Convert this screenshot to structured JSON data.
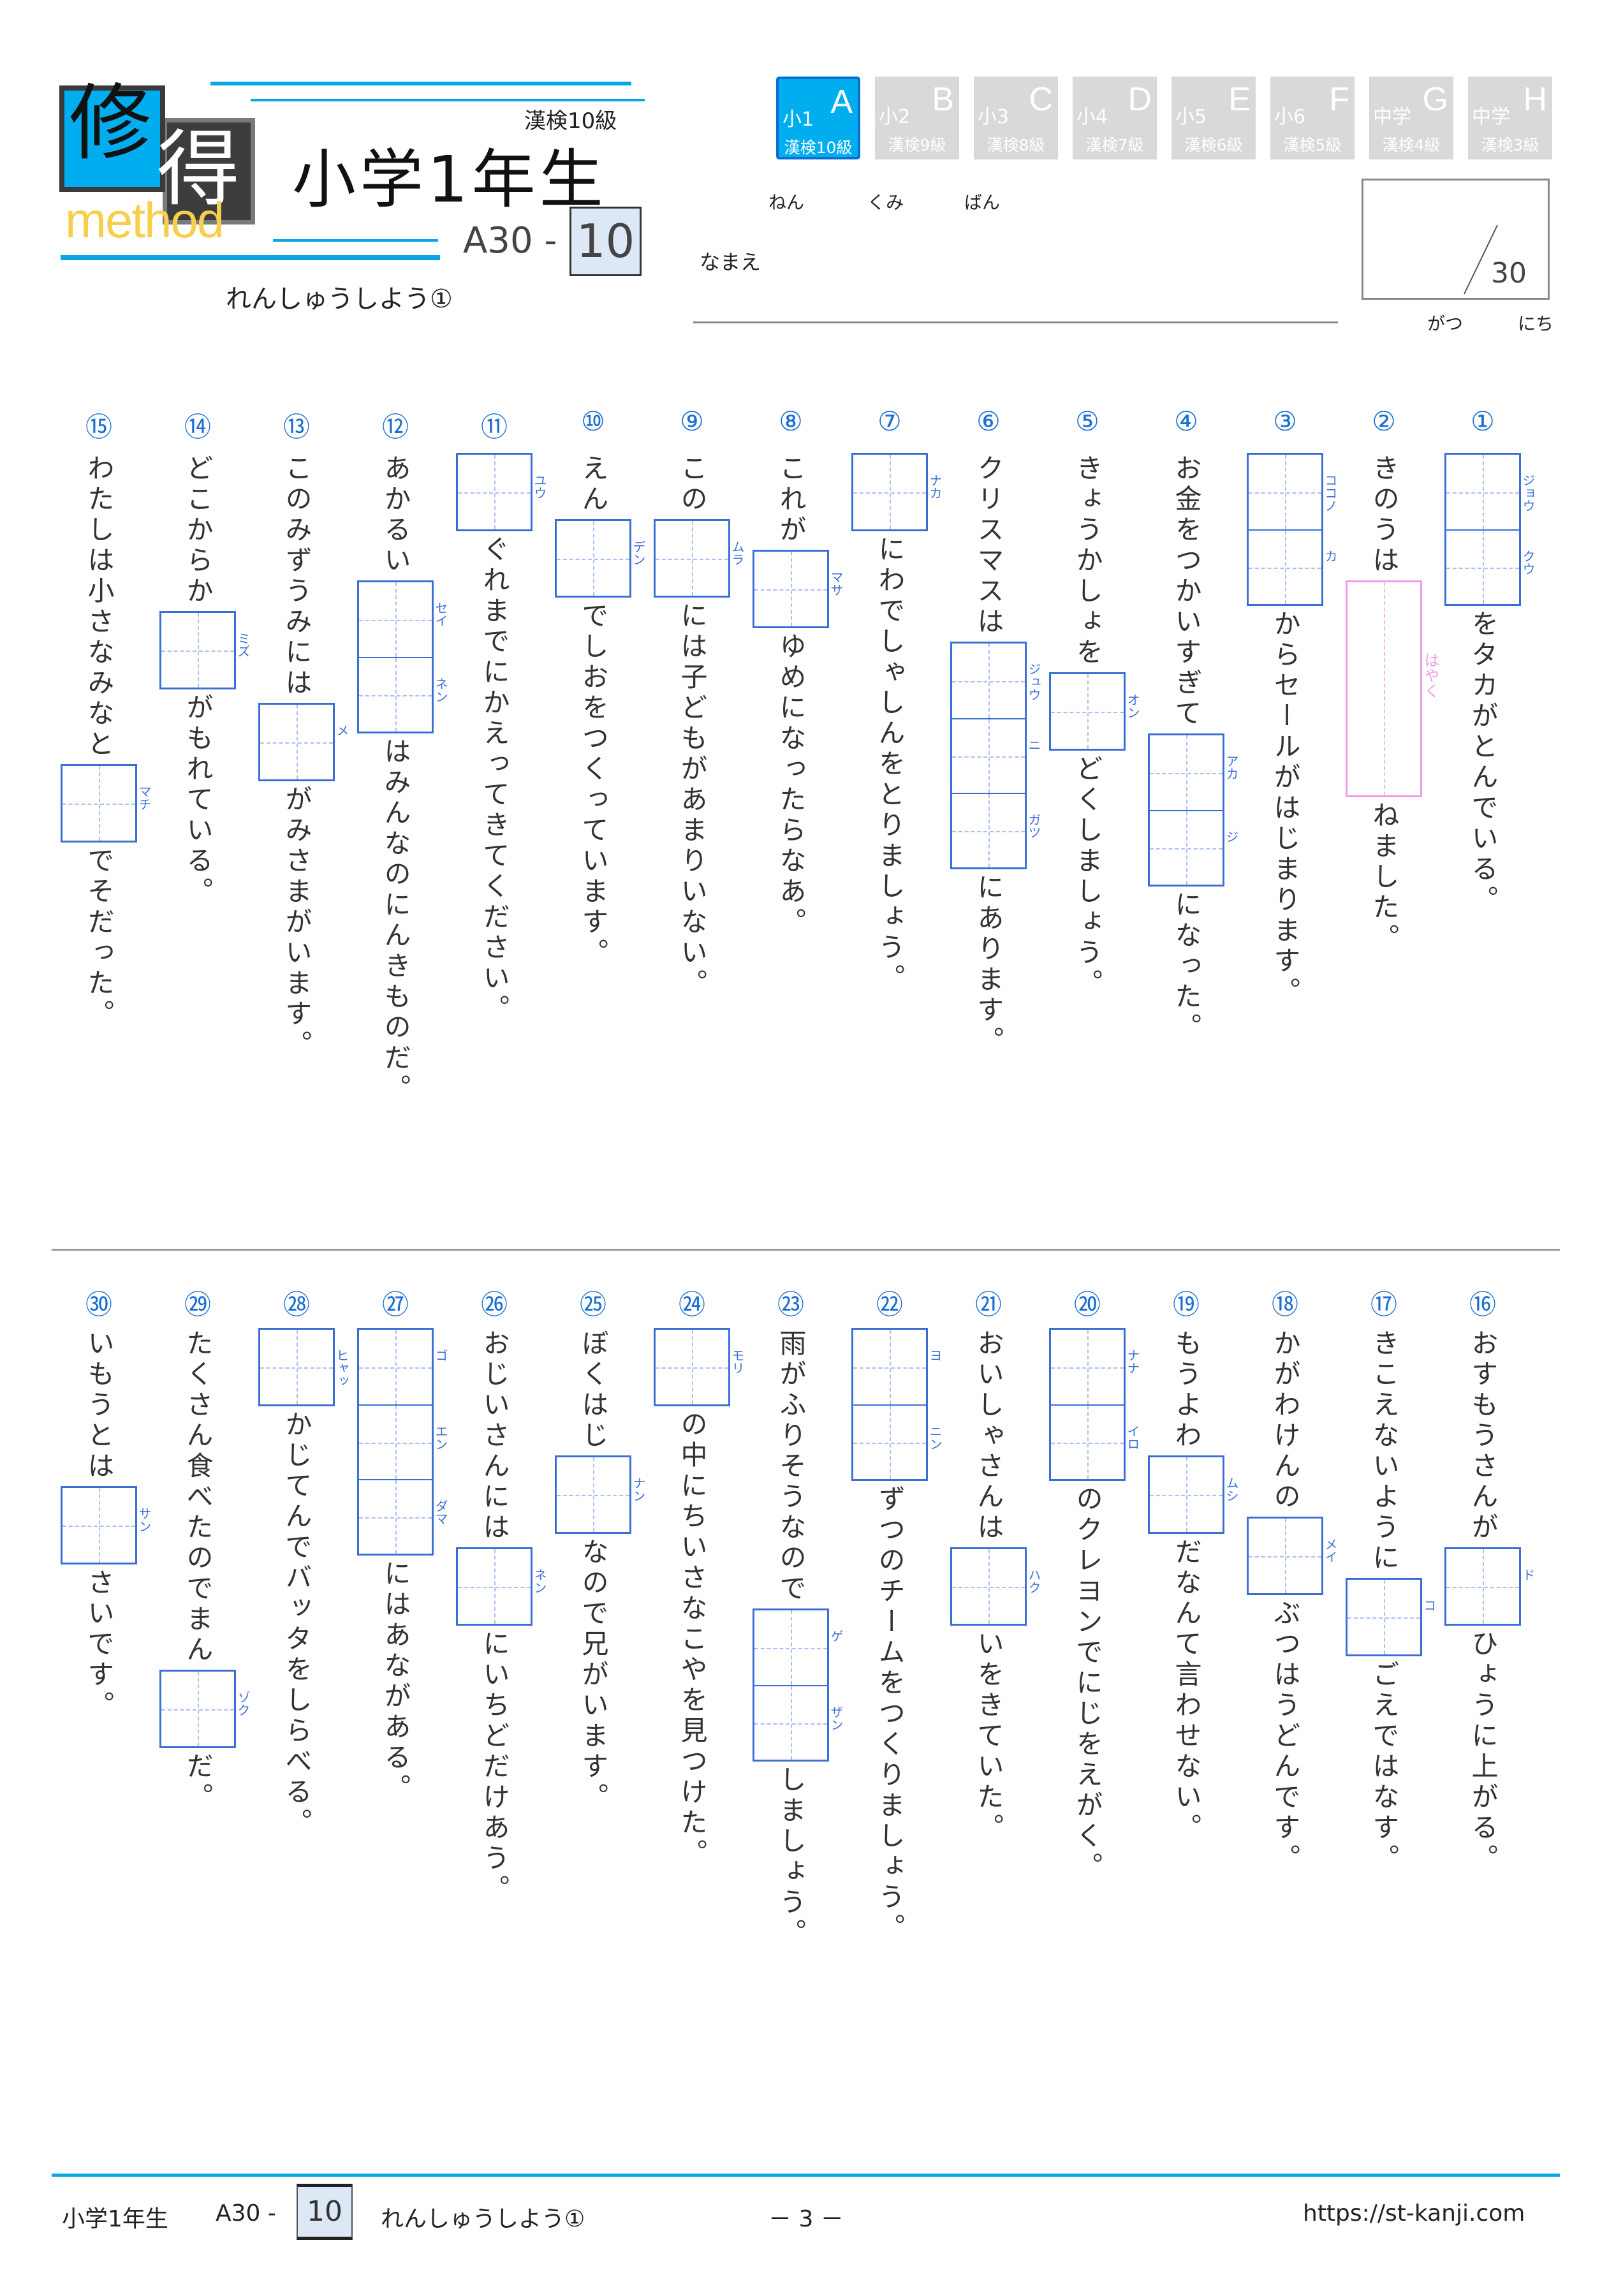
{
  "header": {
    "logo_kanji_1": "修",
    "logo_kanji_2": "得",
    "logo_word": "method",
    "kanken_level": "漢検10級",
    "grade_title": "小学1年生",
    "code_prefix": "A30 -",
    "sheet_number": "10",
    "subtitle": "れんしゅうしよう①"
  },
  "grade_tabs": [
    {
      "grade": "小1",
      "letter": "A",
      "kanken": "漢検10級",
      "active": true
    },
    {
      "grade": "小2",
      "letter": "B",
      "kanken": "漢検9級",
      "active": false
    },
    {
      "grade": "小3",
      "letter": "C",
      "kanken": "漢検8級",
      "active": false
    },
    {
      "grade": "小4",
      "letter": "D",
      "kanken": "漢検7級",
      "active": false
    },
    {
      "grade": "小5",
      "letter": "E",
      "kanken": "漢検6級",
      "active": false
    },
    {
      "grade": "小6",
      "letter": "F",
      "kanken": "漢検5級",
      "active": false
    },
    {
      "grade": "中学",
      "letter": "G",
      "kanken": "漢検4級",
      "active": false
    },
    {
      "grade": "中学",
      "letter": "H",
      "kanken": "漢検3級",
      "active": false
    }
  ],
  "student_info": {
    "year_label": "ねん",
    "class_label": "くみ",
    "number_label": "ばん",
    "name_label": "なまえ",
    "score_total": "30",
    "month_label": "がつ",
    "day_label": "にち"
  },
  "colors": {
    "accent_blue": "#00aeef",
    "box_blue": "#3c6fd6",
    "pink_box": "#f59ae8",
    "logo_yellow": "#f8cf4c",
    "tab_inactive": "#d9d9d9"
  },
  "questions": [
    {
      "num": "①",
      "parts": [
        {
          "box": [
            "ジョウ",
            "クウ"
          ]
        },
        {
          "t": "をタカがとんでいる。"
        }
      ]
    },
    {
      "num": "②",
      "parts": [
        {
          "t": "きのうは"
        },
        {
          "pink": [
            "はやく"
          ]
        },
        {
          "t": "ねました。"
        }
      ]
    },
    {
      "num": "③",
      "parts": [
        {
          "box": [
            "ココノ",
            "カ"
          ]
        },
        {
          "t": "からセールがはじまります。"
        }
      ]
    },
    {
      "num": "④",
      "parts": [
        {
          "t": "お金をつかいすぎて"
        },
        {
          "box": [
            "アカ",
            "ジ"
          ]
        },
        {
          "t": "になった。"
        }
      ]
    },
    {
      "num": "⑤",
      "parts": [
        {
          "t": "きょうかしょを"
        },
        {
          "box": [
            "オン"
          ]
        },
        {
          "t": "どくしましょう。"
        }
      ]
    },
    {
      "num": "⑥",
      "parts": [
        {
          "t": "クリスマスは"
        },
        {
          "box": [
            "ジュウ",
            "ニ",
            "ガツ"
          ]
        },
        {
          "t": "にあります。"
        }
      ]
    },
    {
      "num": "⑦",
      "parts": [
        {
          "box": [
            "ナカ"
          ]
        },
        {
          "t": "にわでしゃしんをとりましょう。"
        }
      ]
    },
    {
      "num": "⑧",
      "parts": [
        {
          "t": "これが"
        },
        {
          "box": [
            "マサ"
          ]
        },
        {
          "t": "ゆめになったらなあ。"
        }
      ]
    },
    {
      "num": "⑨",
      "parts": [
        {
          "t": "この"
        },
        {
          "box": [
            "ムラ"
          ]
        },
        {
          "t": "には子どもがあまりいない。"
        }
      ]
    },
    {
      "num": "⑩",
      "parts": [
        {
          "t": "えん"
        },
        {
          "box": [
            "デン"
          ]
        },
        {
          "t": "でしおをつくっています。"
        }
      ]
    },
    {
      "num": "⑪",
      "parts": [
        {
          "box": [
            "ユウ"
          ]
        },
        {
          "t": "ぐれまでにかえってきてください。"
        }
      ]
    },
    {
      "num": "⑫",
      "parts": [
        {
          "t": "あかるい"
        },
        {
          "box": [
            "セイ",
            "ネン"
          ]
        },
        {
          "t": "はみんなのにんきものだ。"
        }
      ]
    },
    {
      "num": "⑬",
      "parts": [
        {
          "t": "このみずうみには"
        },
        {
          "box": [
            "メ"
          ]
        },
        {
          "t": "がみさまがいます。"
        }
      ]
    },
    {
      "num": "⑭",
      "parts": [
        {
          "t": "どこからか"
        },
        {
          "box": [
            "ミズ"
          ]
        },
        {
          "t": "がもれている。"
        }
      ]
    },
    {
      "num": "⑮",
      "parts": [
        {
          "t": "わたしは小さなみなと"
        },
        {
          "box": [
            "マチ"
          ]
        },
        {
          "t": "でそだった。"
        }
      ]
    },
    {
      "num": "⑯",
      "parts": [
        {
          "t": "おすもうさんが"
        },
        {
          "box": [
            "ド"
          ]
        },
        {
          "t": "ひょうに上がる。"
        }
      ]
    },
    {
      "num": "⑰",
      "parts": [
        {
          "t": "きこえないように"
        },
        {
          "box": [
            "コ"
          ]
        },
        {
          "t": "ごえではなす。"
        }
      ]
    },
    {
      "num": "⑱",
      "parts": [
        {
          "t": "かがわけんの"
        },
        {
          "box": [
            "メイ"
          ]
        },
        {
          "t": "ぶつはうどんです。"
        }
      ]
    },
    {
      "num": "⑲",
      "parts": [
        {
          "t": "もうよわ"
        },
        {
          "box": [
            "ムシ"
          ]
        },
        {
          "t": "だなんて言わせない。"
        }
      ]
    },
    {
      "num": "⑳",
      "parts": [
        {
          "box": [
            "ナナ",
            "イロ"
          ]
        },
        {
          "t": "のクレヨンでにじをえがく。"
        }
      ]
    },
    {
      "num": "㉑",
      "parts": [
        {
          "t": "おいしゃさんは"
        },
        {
          "box": [
            "ハク"
          ]
        },
        {
          "t": "いをきていた。"
        }
      ]
    },
    {
      "num": "㉒",
      "parts": [
        {
          "box": [
            "ヨ",
            "ニン"
          ]
        },
        {
          "t": "ずつのチームをつくりましょう。"
        }
      ]
    },
    {
      "num": "㉓",
      "parts": [
        {
          "t": "雨がふりそうなので"
        },
        {
          "box": [
            "ゲ",
            "ザン"
          ]
        },
        {
          "t": "しましょう。"
        }
      ]
    },
    {
      "num": "㉔",
      "parts": [
        {
          "box": [
            "モリ"
          ]
        },
        {
          "t": "の中にちいさなこやを見つけた。"
        }
      ]
    },
    {
      "num": "㉕",
      "parts": [
        {
          "t": "ぼくはじ"
        },
        {
          "box": [
            "ナン"
          ]
        },
        {
          "t": "なので兄がいます。"
        }
      ]
    },
    {
      "num": "㉖",
      "parts": [
        {
          "t": "おじいさんには"
        },
        {
          "box": [
            "ネン"
          ]
        },
        {
          "t": "にいちどだけあう。"
        }
      ]
    },
    {
      "num": "㉗",
      "parts": [
        {
          "box": [
            "ゴ",
            "エン",
            "ダマ"
          ]
        },
        {
          "t": "にはあながある。"
        }
      ]
    },
    {
      "num": "㉘",
      "parts": [
        {
          "box": [
            "ヒャッ"
          ]
        },
        {
          "t": "かじてんでバッタをしらべる。"
        }
      ]
    },
    {
      "num": "㉙",
      "parts": [
        {
          "t": "たくさん食べたのでまん"
        },
        {
          "box": [
            "ゾク"
          ]
        },
        {
          "t": "だ。"
        }
      ]
    },
    {
      "num": "㉚",
      "parts": [
        {
          "t": "いもうとは"
        },
        {
          "box": [
            "サン"
          ]
        },
        {
          "t": "さいです。"
        }
      ]
    }
  ],
  "footer": {
    "grade": "小学1年生",
    "code_prefix": "A30 -",
    "sheet_number": "10",
    "subtitle": "れんしゅうしよう①",
    "page": "－ 3 －",
    "url": "https://st-kanji.com"
  }
}
